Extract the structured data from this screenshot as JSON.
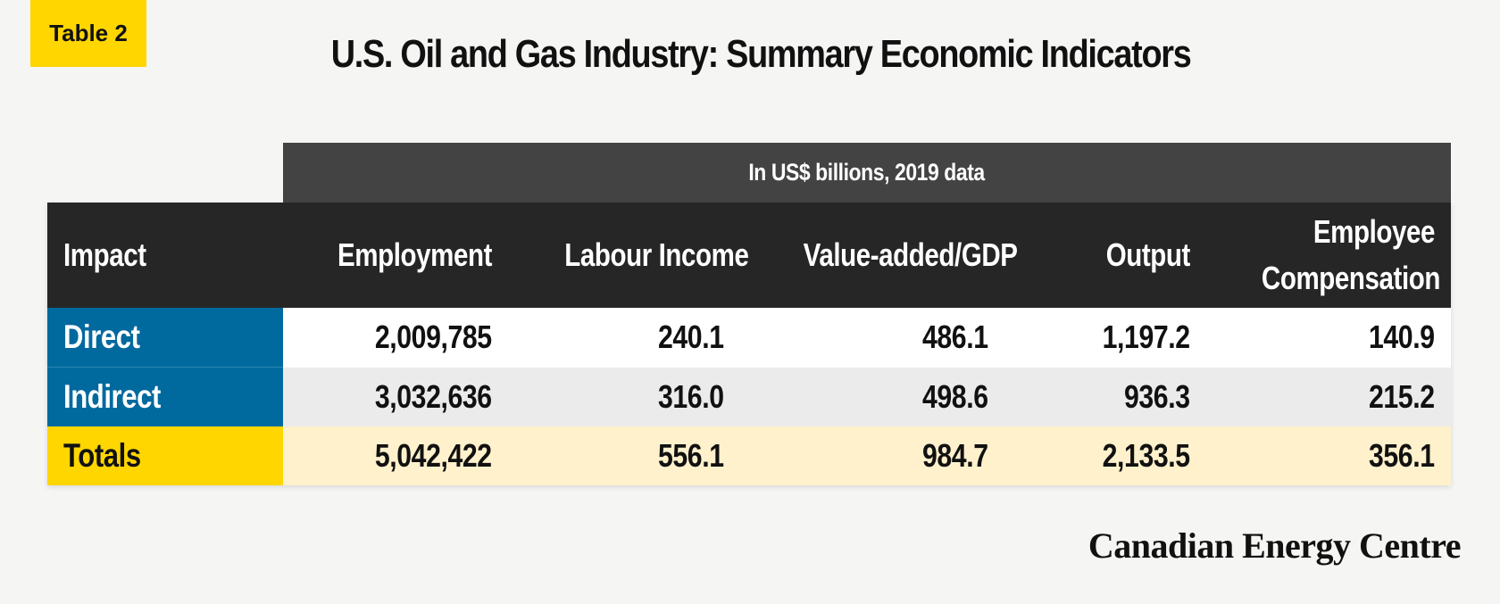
{
  "tag": "Table 2",
  "title": "U.S. Oil and Gas Industry: Summary Economic Indicators",
  "subheader": "In US$ billions, 2019 data",
  "columns": [
    "Impact",
    "Employment",
    "Labour Income",
    "Value-added/GDP",
    "Output",
    "Employee Compensation"
  ],
  "columns_split": {
    "employee_line1": "Employee",
    "employee_line2": "Compensation"
  },
  "rows": [
    {
      "label": "Direct",
      "values": [
        "2,009,785",
        "240.1",
        "486.1",
        "1,197.2",
        "140.9"
      ]
    },
    {
      "label": "Indirect",
      "values": [
        "3,032,636",
        "316.0",
        "498.6",
        "936.3",
        "215.2"
      ]
    },
    {
      "label": "Totals",
      "values": [
        "5,042,422",
        "556.1",
        "984.7",
        "2,133.5",
        "356.1"
      ]
    }
  ],
  "colors": {
    "tag": "#ffd600",
    "header_dark": "#262626",
    "subheader": "#434343",
    "row_label_blue": "#00699e",
    "totals_label": "#ffd600",
    "totals_row": "#fff1cc",
    "indirect_row": "#ebebeb"
  },
  "footer": "Canadian Energy Centre"
}
